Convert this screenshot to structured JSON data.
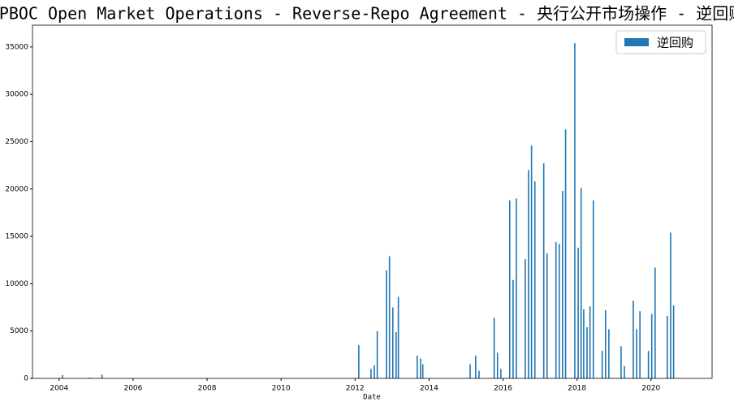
{
  "chart_data": {
    "type": "bar",
    "title": "PBOC Open Market Operations - Reverse-Repo Agreement - 央行公开市场操作 - 逆回购",
    "x_label": "Date",
    "x": [
      2004.09,
      2004.83,
      2005.16,
      2012.1,
      2012.43,
      2012.52,
      2012.6,
      2012.85,
      2012.93,
      2013.02,
      2013.11,
      2013.17,
      2013.68,
      2013.77,
      2013.83,
      2015.11,
      2015.26,
      2015.35,
      2015.76,
      2015.85,
      2015.94,
      2016.18,
      2016.27,
      2016.36,
      2016.6,
      2016.69,
      2016.77,
      2016.86,
      2017.1,
      2017.19,
      2017.43,
      2017.52,
      2017.61,
      2017.69,
      2017.94,
      2018.03,
      2018.11,
      2018.18,
      2018.27,
      2018.35,
      2018.44,
      2018.68,
      2018.77,
      2018.86,
      2019.19,
      2019.28,
      2019.52,
      2019.61,
      2019.7,
      2019.93,
      2020.02,
      2020.11,
      2020.44,
      2020.53,
      2020.61
    ],
    "series": [
      {
        "name": "逆回购",
        "color": "#1f77b4",
        "values": [
          350,
          100,
          400,
          3500,
          1000,
          1400,
          5000,
          11400,
          12900,
          7500,
          4900,
          8600,
          2400,
          2100,
          1500,
          1500,
          2400,
          800,
          6400,
          2700,
          1000,
          18800,
          10400,
          19000,
          12600,
          22000,
          24600,
          20800,
          22700,
          13200,
          14400,
          14200,
          19800,
          26300,
          35400,
          13800,
          20100,
          7300,
          5400,
          7600,
          18800,
          2900,
          7200,
          5200,
          3400,
          1300,
          8200,
          5200,
          7100,
          2900,
          6800,
          11700,
          6600,
          15400,
          7700
        ]
      }
    ],
    "xlim": [
      2003.28,
      2021.65
    ],
    "xticks": [
      2004,
      2006,
      2008,
      2010,
      2012,
      2014,
      2016,
      2018,
      2020
    ],
    "ylim": [
      0,
      37300
    ],
    "yticks": [
      0,
      5000,
      10000,
      15000,
      20000,
      25000,
      30000,
      35000
    ],
    "legend": "upper right"
  }
}
